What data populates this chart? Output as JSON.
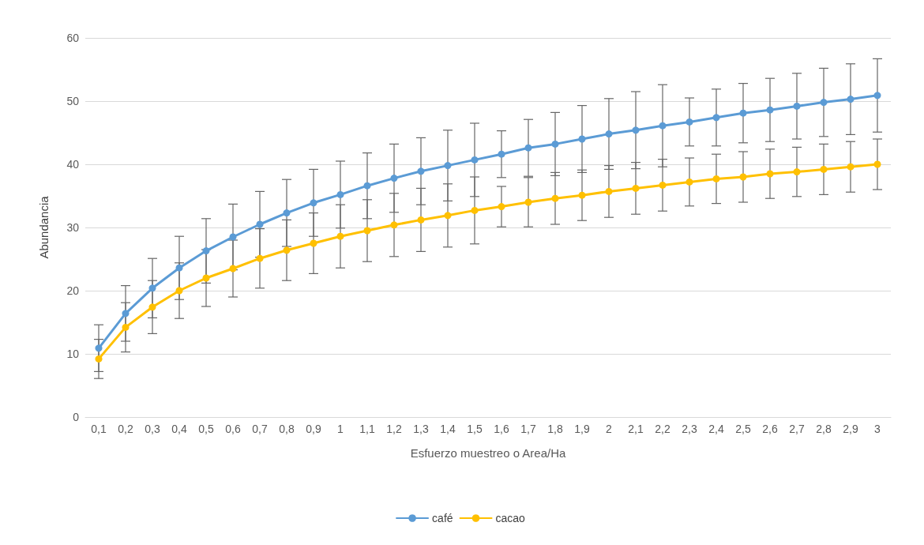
{
  "chart_data": {
    "type": "line",
    "xlabel": "Esfuerzo muestreo o Area/Ha",
    "ylabel": "Abundancia",
    "categories": [
      "0,1",
      "0,2",
      "0,3",
      "0,4",
      "0,5",
      "0,6",
      "0,7",
      "0,8",
      "0,9",
      "1",
      "1,1",
      "1,2",
      "1,3",
      "1,4",
      "1,5",
      "1,6",
      "1,7",
      "1,8",
      "1,9",
      "2",
      "2,1",
      "2,2",
      "2,3",
      "2,4",
      "2,5",
      "2,6",
      "2,7",
      "2,8",
      "2,9",
      "3"
    ],
    "series": [
      {
        "name": "café",
        "color": "#5b9bd5",
        "values": [
          10.9,
          16.4,
          20.4,
          23.6,
          26.3,
          28.5,
          30.5,
          32.3,
          33.9,
          35.2,
          36.6,
          37.8,
          38.9,
          39.8,
          40.7,
          41.6,
          42.6,
          43.2,
          44.0,
          44.8,
          45.4,
          46.1,
          46.7,
          47.4,
          48.1,
          48.6,
          49.2,
          49.8,
          50.3,
          50.9
        ],
        "errors": [
          3.7,
          4.4,
          4.7,
          5.0,
          5.1,
          5.2,
          5.2,
          5.3,
          5.3,
          5.3,
          5.2,
          5.4,
          5.3,
          5.6,
          5.8,
          3.7,
          4.5,
          5.0,
          5.3,
          5.6,
          6.1,
          6.5,
          3.8,
          4.5,
          4.7,
          5.0,
          5.2,
          5.4,
          5.6,
          5.8
        ]
      },
      {
        "name": "cacao",
        "color": "#ffc000",
        "values": [
          9.2,
          14.2,
          17.4,
          20.0,
          22.0,
          23.5,
          25.1,
          26.4,
          27.5,
          28.6,
          29.5,
          30.4,
          31.2,
          31.9,
          32.7,
          33.3,
          34.0,
          34.6,
          35.1,
          35.7,
          36.2,
          36.7,
          37.2,
          37.7,
          38.0,
          38.5,
          38.8,
          39.2,
          39.6,
          40.0
        ],
        "errors": [
          3.1,
          3.9,
          4.2,
          4.4,
          4.5,
          4.5,
          4.7,
          4.8,
          4.8,
          5.0,
          4.9,
          5.0,
          5.0,
          5.0,
          5.3,
          3.2,
          3.9,
          4.1,
          4.0,
          4.1,
          4.1,
          4.1,
          3.8,
          3.9,
          4.0,
          3.9,
          3.9,
          4.0,
          4.0,
          4.0
        ]
      }
    ],
    "ylim": [
      0,
      60
    ],
    "yticks": [
      0,
      10,
      20,
      30,
      40,
      50,
      60
    ],
    "grid": "y",
    "legend": "bottom",
    "marker": "circle",
    "line_style": "solid"
  }
}
